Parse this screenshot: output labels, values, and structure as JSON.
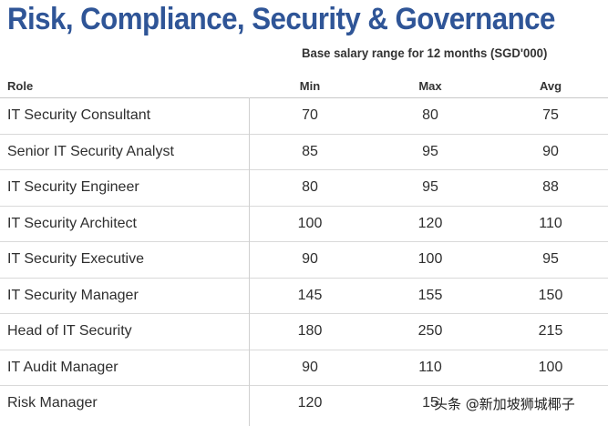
{
  "title": "Risk, Compliance, Security & Governance",
  "subtitle": "Base salary range for 12 months (SGD'000)",
  "columns": {
    "role": "Role",
    "min": "Min",
    "max": "Max",
    "avg": "Avg"
  },
  "rows": [
    {
      "role": "IT Security Consultant",
      "min": "70",
      "max": "80",
      "avg": "75"
    },
    {
      "role": "Senior IT Security Analyst",
      "min": "85",
      "max": "95",
      "avg": "90"
    },
    {
      "role": "IT Security Engineer",
      "min": "80",
      "max": "95",
      "avg": "88"
    },
    {
      "role": "IT Security Architect",
      "min": "100",
      "max": "120",
      "avg": "110"
    },
    {
      "role": "IT Security Executive",
      "min": "90",
      "max": "100",
      "avg": "95"
    },
    {
      "role": "IT Security Manager",
      "min": "145",
      "max": "155",
      "avg": "150"
    },
    {
      "role": "Head of IT Security",
      "min": "180",
      "max": "250",
      "avg": "215"
    },
    {
      "role": "IT Audit Manager",
      "min": "90",
      "max": "110",
      "avg": "100"
    },
    {
      "role": "Risk Manager",
      "min": "120",
      "max": "15",
      "avg": ""
    }
  ],
  "watermark": "头条 @新加坡狮城椰子",
  "colors": {
    "title": "#2f5597",
    "text": "#2e2e2e",
    "rule": "#d9d9d9"
  }
}
